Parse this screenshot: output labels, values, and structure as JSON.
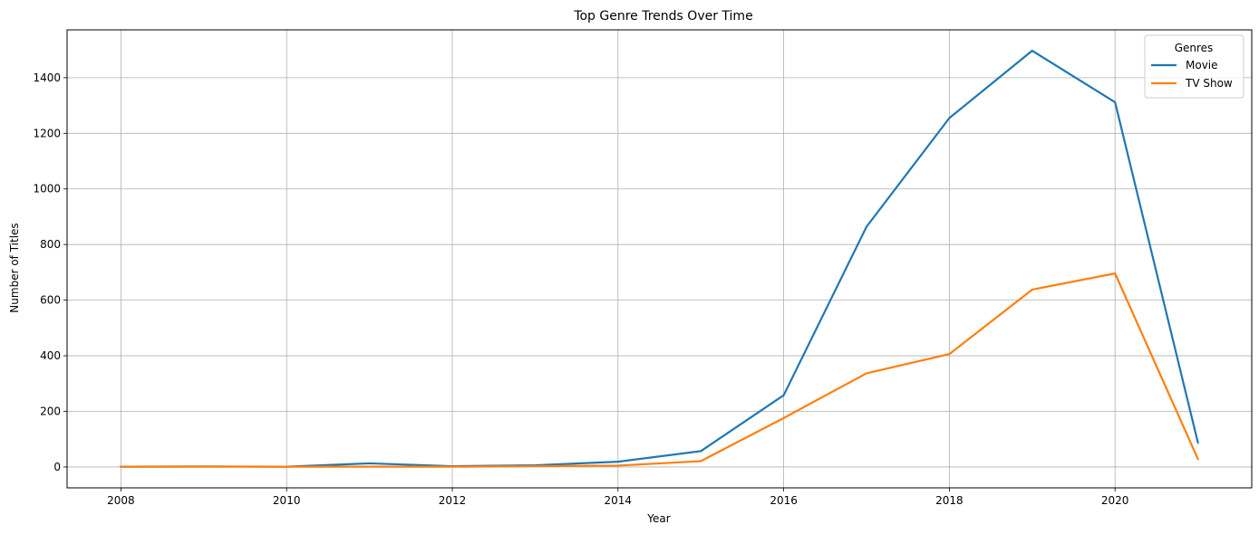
{
  "chart_data": {
    "type": "line",
    "title": "Top Genre Trends Over Time",
    "xlabel": "Year",
    "ylabel": "Number of Titles",
    "x": [
      2008,
      2009,
      2010,
      2011,
      2012,
      2013,
      2014,
      2015,
      2016,
      2017,
      2018,
      2019,
      2020,
      2021
    ],
    "series": [
      {
        "name": "Movie",
        "color": "#1f77b4",
        "values": [
          1,
          2,
          1,
          13,
          3,
          6,
          19,
          57,
          258,
          864,
          1255,
          1497,
          1312,
          88
        ]
      },
      {
        "name": "TV Show",
        "color": "#ff7f0e",
        "values": [
          1,
          1,
          1,
          1,
          1,
          3,
          5,
          21,
          176,
          337,
          406,
          638,
          696,
          29
        ]
      }
    ],
    "xlim": [
      2007.35,
      2021.65
    ],
    "ylim": [
      -75,
      1572
    ],
    "xticks": [
      "2008",
      "2010",
      "2012",
      "2014",
      "2016",
      "2018",
      "2020"
    ],
    "yticks": [
      "0",
      "200",
      "400",
      "600",
      "800",
      "1000",
      "1200",
      "1400"
    ],
    "grid": true,
    "legend": {
      "title": "Genres",
      "placement": "top-right"
    }
  }
}
